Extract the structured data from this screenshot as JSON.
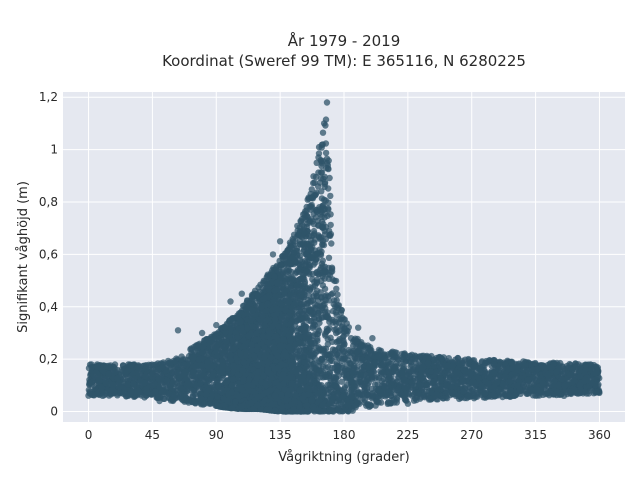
{
  "chart_data": {
    "type": "scatter",
    "title_line1": "År 1979 - 2019",
    "title_line2": "Koordinat (Sweref 99 TM): E 365116, N 6280225",
    "xlabel": "Vågriktning (grader)",
    "ylabel": "Signifikant våghöjd (m)",
    "xlim": [
      -18,
      378
    ],
    "ylim": [
      -0.04,
      1.22
    ],
    "xticks": [
      0,
      45,
      90,
      135,
      180,
      225,
      270,
      315,
      360
    ],
    "xtick_labels": [
      "0",
      "45",
      "90",
      "135",
      "180",
      "225",
      "270",
      "315",
      "360"
    ],
    "yticks": [
      0,
      0.2,
      0.4,
      0.6,
      0.8,
      1.0,
      1.2
    ],
    "ytick_labels": [
      "0",
      "0,2",
      "0,4",
      "0,6",
      "0,8",
      "1",
      "1,2"
    ],
    "grid": true,
    "colors": {
      "marker": "#2f5469",
      "plot_bg": "#e5e8f0",
      "grid": "#ffffff"
    },
    "envelope": [
      {
        "x": 0,
        "low": 0.06,
        "high": 0.18
      },
      {
        "x": 20,
        "low": 0.06,
        "high": 0.18
      },
      {
        "x": 45,
        "low": 0.05,
        "high": 0.18
      },
      {
        "x": 60,
        "low": 0.04,
        "high": 0.2
      },
      {
        "x": 75,
        "low": 0.03,
        "high": 0.25
      },
      {
        "x": 90,
        "low": 0.02,
        "high": 0.3
      },
      {
        "x": 105,
        "low": 0.01,
        "high": 0.38
      },
      {
        "x": 120,
        "low": 0.01,
        "high": 0.48
      },
      {
        "x": 135,
        "low": 0.0,
        "high": 0.58
      },
      {
        "x": 145,
        "low": 0.0,
        "high": 0.68
      },
      {
        "x": 155,
        "low": 0.0,
        "high": 0.82
      },
      {
        "x": 160,
        "low": 0.0,
        "high": 0.95
      },
      {
        "x": 165,
        "low": 0.0,
        "high": 1.08
      },
      {
        "x": 168,
        "low": 0.0,
        "high": 1.15
      },
      {
        "x": 172,
        "low": 0.0,
        "high": 0.62
      },
      {
        "x": 176,
        "low": 0.0,
        "high": 0.42
      },
      {
        "x": 185,
        "low": 0.0,
        "high": 0.3
      },
      {
        "x": 200,
        "low": 0.02,
        "high": 0.24
      },
      {
        "x": 225,
        "low": 0.04,
        "high": 0.22
      },
      {
        "x": 270,
        "low": 0.05,
        "high": 0.2
      },
      {
        "x": 315,
        "low": 0.06,
        "high": 0.19
      },
      {
        "x": 360,
        "low": 0.07,
        "high": 0.18
      }
    ],
    "outliers": [
      {
        "x": 168,
        "y": 1.18
      },
      {
        "x": 166,
        "y": 1.1
      },
      {
        "x": 165,
        "y": 1.02
      },
      {
        "x": 162,
        "y": 0.97
      },
      {
        "x": 135,
        "y": 0.65
      },
      {
        "x": 130,
        "y": 0.6
      },
      {
        "x": 108,
        "y": 0.45
      },
      {
        "x": 100,
        "y": 0.42
      },
      {
        "x": 90,
        "y": 0.33
      },
      {
        "x": 80,
        "y": 0.3
      },
      {
        "x": 63,
        "y": 0.31
      },
      {
        "x": 190,
        "y": 0.32
      },
      {
        "x": 200,
        "y": 0.28
      },
      {
        "x": 10,
        "y": 0.06
      },
      {
        "x": 28,
        "y": 0.06
      },
      {
        "x": 50,
        "y": 0.04
      },
      {
        "x": 225,
        "y": 0.03
      },
      {
        "x": 240,
        "y": 0.05
      },
      {
        "x": 250,
        "y": 0.05
      },
      {
        "x": 300,
        "y": 0.06
      },
      {
        "x": 335,
        "y": 0.06
      },
      {
        "x": 356,
        "y": 0.07
      }
    ]
  }
}
